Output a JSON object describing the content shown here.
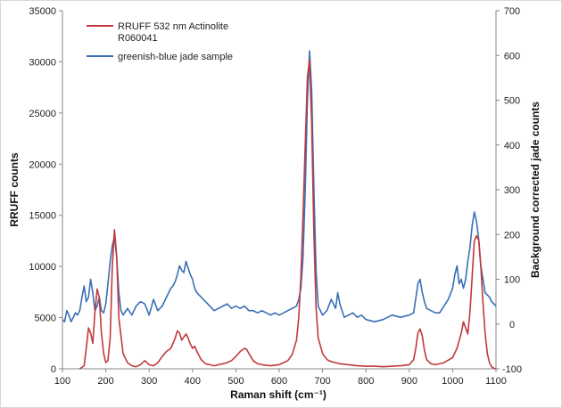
{
  "chart_data": {
    "type": "line",
    "xlabel": "Raman shift (cm⁻¹)",
    "ylabel": "RRUFF counts",
    "y2label": "Background corrected jade counts",
    "xlim": [
      100,
      1100
    ],
    "ylim": [
      0,
      35000
    ],
    "y2lim": [
      -100,
      700
    ],
    "xticks": [
      "100",
      "200",
      "300",
      "400",
      "500",
      "600",
      "700",
      "800",
      "900",
      "1000",
      "1100"
    ],
    "yticks": [
      "0",
      "5000",
      "10000",
      "15000",
      "20000",
      "25000",
      "30000",
      "35000"
    ],
    "y2ticks": [
      "-100",
      "0",
      "100",
      "200",
      "300",
      "400",
      "500",
      "600",
      "700"
    ],
    "grid": false,
    "legend_position": "top-left",
    "series": [
      {
        "name": "RRUFF 532 nm Actinolite R060041",
        "legend_lines": [
          "RRUFF 532 nm Actinolite",
          "R060041"
        ],
        "axis": "left",
        "color": "#c0393b",
        "x": [
          140,
          150,
          155,
          160,
          165,
          170,
          175,
          180,
          185,
          190,
          195,
          200,
          205,
          210,
          215,
          220,
          225,
          230,
          240,
          250,
          260,
          270,
          280,
          290,
          300,
          310,
          320,
          330,
          340,
          350,
          360,
          365,
          370,
          375,
          380,
          385,
          390,
          395,
          400,
          405,
          410,
          420,
          430,
          440,
          450,
          460,
          470,
          480,
          490,
          500,
          510,
          520,
          525,
          530,
          540,
          550,
          560,
          580,
          600,
          620,
          630,
          640,
          645,
          650,
          655,
          660,
          665,
          670,
          675,
          680,
          685,
          690,
          700,
          710,
          720,
          730,
          740,
          760,
          780,
          800,
          820,
          840,
          860,
          880,
          900,
          910,
          915,
          920,
          925,
          930,
          935,
          940,
          950,
          960,
          980,
          1000,
          1010,
          1020,
          1025,
          1030,
          1035,
          1040,
          1045,
          1050,
          1055,
          1060,
          1065,
          1070,
          1075,
          1080,
          1085,
          1090,
          1095,
          1100
        ],
        "values": [
          0,
          300,
          2000,
          4000,
          3500,
          2500,
          5500,
          7800,
          7000,
          3500,
          1500,
          600,
          800,
          3000,
          10000,
          13600,
          11000,
          5000,
          1500,
          600,
          300,
          200,
          400,
          800,
          400,
          300,
          600,
          1200,
          1700,
          2000,
          3000,
          3700,
          3500,
          2800,
          3100,
          3400,
          3000,
          2400,
          2000,
          2200,
          1700,
          900,
          500,
          400,
          300,
          400,
          500,
          600,
          800,
          1200,
          1700,
          2000,
          1900,
          1500,
          800,
          500,
          400,
          300,
          400,
          800,
          1400,
          2800,
          5000,
          9000,
          15000,
          22000,
          28500,
          30200,
          24000,
          13000,
          6000,
          3000,
          1500,
          900,
          700,
          600,
          500,
          400,
          300,
          250,
          250,
          200,
          250,
          300,
          400,
          900,
          2000,
          3500,
          3900,
          3200,
          1800,
          900,
          500,
          400,
          600,
          1100,
          2000,
          3500,
          4600,
          4000,
          3400,
          5500,
          9000,
          12500,
          13000,
          12600,
          10000,
          6500,
          3500,
          1500,
          600,
          200,
          50,
          0
        ]
      },
      {
        "name": "greenish-blue jade sample",
        "axis": "right",
        "color": "#3a6fb5",
        "x": [
          100,
          105,
          110,
          115,
          120,
          125,
          130,
          135,
          140,
          145,
          150,
          155,
          160,
          165,
          170,
          175,
          180,
          185,
          190,
          195,
          200,
          205,
          210,
          215,
          220,
          225,
          230,
          235,
          240,
          250,
          260,
          270,
          280,
          290,
          300,
          310,
          320,
          330,
          340,
          350,
          355,
          360,
          365,
          370,
          375,
          380,
          385,
          390,
          395,
          400,
          405,
          410,
          420,
          430,
          440,
          450,
          460,
          470,
          480,
          490,
          500,
          510,
          520,
          530,
          540,
          550,
          560,
          570,
          580,
          590,
          600,
          610,
          620,
          630,
          640,
          645,
          650,
          655,
          660,
          665,
          670,
          675,
          680,
          685,
          690,
          700,
          710,
          720,
          730,
          735,
          740,
          750,
          760,
          770,
          780,
          790,
          800,
          820,
          840,
          860,
          880,
          900,
          910,
          920,
          925,
          930,
          935,
          940,
          950,
          960,
          970,
          980,
          990,
          1000,
          1005,
          1010,
          1015,
          1020,
          1025,
          1030,
          1035,
          1040,
          1045,
          1050,
          1055,
          1060,
          1065,
          1070,
          1075,
          1080,
          1085,
          1090,
          1095,
          1100
        ],
        "values": [
          10,
          5,
          30,
          20,
          5,
          15,
          25,
          20,
          30,
          60,
          85,
          50,
          60,
          100,
          70,
          30,
          40,
          60,
          30,
          25,
          45,
          90,
          140,
          175,
          195,
          150,
          70,
          30,
          20,
          35,
          20,
          40,
          50,
          45,
          20,
          55,
          30,
          40,
          60,
          80,
          85,
          95,
          110,
          130,
          120,
          115,
          140,
          125,
          110,
          100,
          80,
          70,
          60,
          50,
          40,
          30,
          35,
          40,
          45,
          35,
          40,
          35,
          40,
          30,
          30,
          25,
          30,
          25,
          20,
          25,
          20,
          25,
          30,
          35,
          40,
          55,
          80,
          150,
          300,
          500,
          610,
          520,
          300,
          120,
          40,
          20,
          30,
          55,
          35,
          70,
          45,
          15,
          20,
          25,
          15,
          20,
          10,
          5,
          10,
          20,
          15,
          20,
          25,
          90,
          100,
          70,
          50,
          35,
          30,
          25,
          25,
          40,
          55,
          80,
          110,
          130,
          90,
          100,
          80,
          100,
          140,
          170,
          220,
          250,
          230,
          190,
          130,
          100,
          70,
          65,
          60,
          50,
          45,
          40
        ]
      }
    ]
  }
}
